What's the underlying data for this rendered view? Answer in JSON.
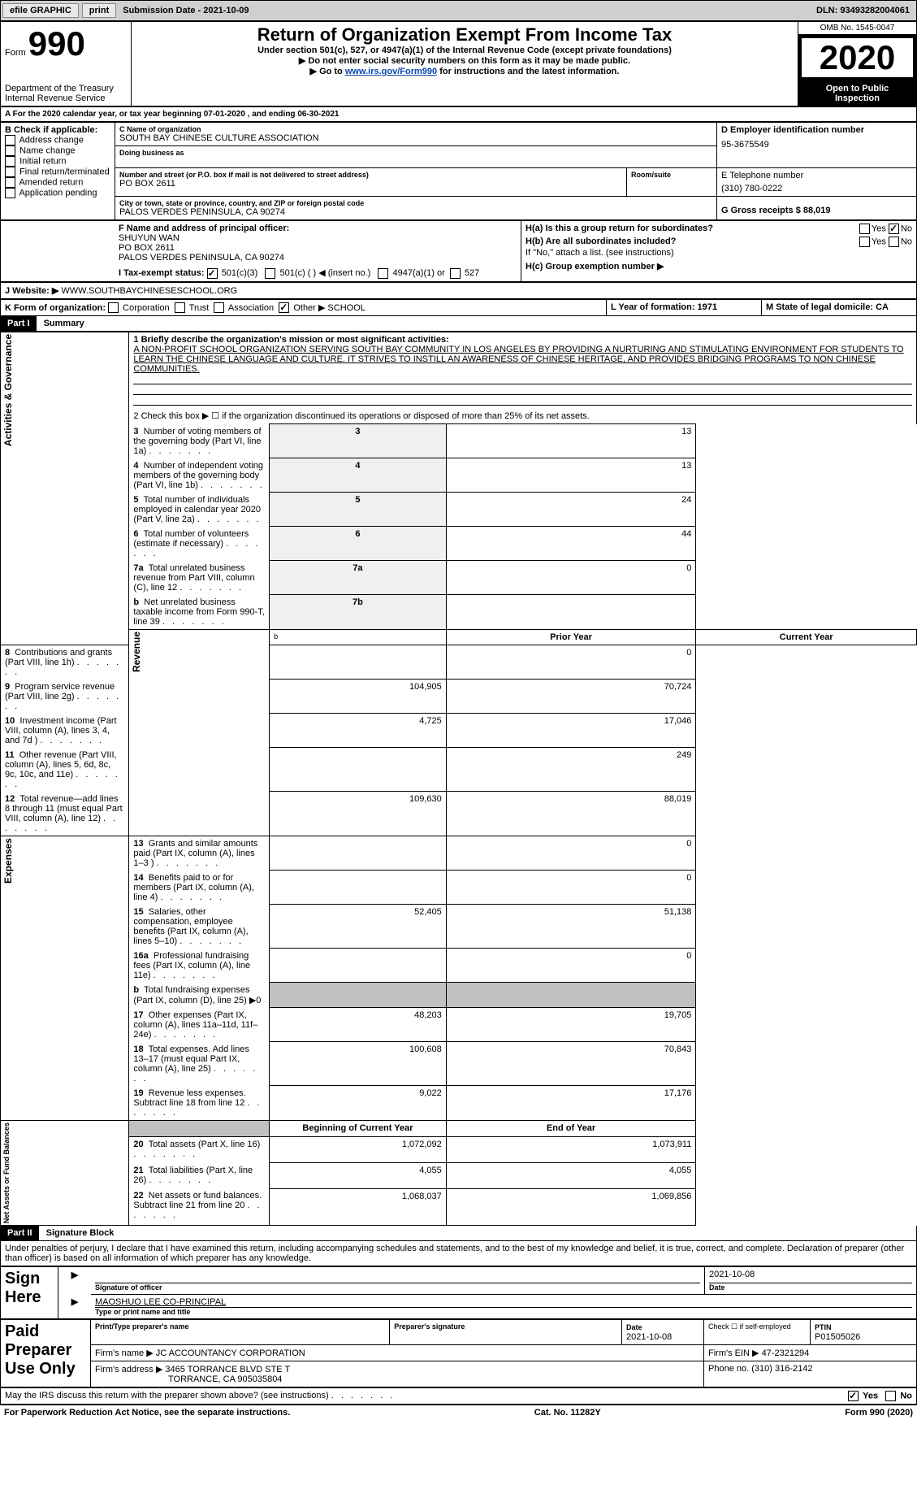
{
  "topbar": {
    "efile": "efile GRAPHIC",
    "print": "print",
    "sub_label": "Submission Date - 2021-10-09",
    "dln": "DLN: 93493282004061"
  },
  "header": {
    "form_label": "Form",
    "form_num": "990",
    "title": "Return of Organization Exempt From Income Tax",
    "sub1": "Under section 501(c), 527, or 4947(a)(1) of the Internal Revenue Code (except private foundations)",
    "sub2": "▶ Do not enter social security numbers on this form as it may be made public.",
    "sub3_pre": "▶ Go to ",
    "sub3_link": "www.irs.gov/Form990",
    "sub3_post": " for instructions and the latest information.",
    "dept": "Department of the Treasury\nInternal Revenue Service",
    "omb": "OMB No. 1545-0047",
    "year": "2020",
    "open": "Open to Public Inspection"
  },
  "period": {
    "a": "A For the 2020 calendar year, or tax year beginning 07-01-2020   , and ending 06-30-2021"
  },
  "boxB": {
    "label": "B Check if applicable:",
    "items": [
      "Address change",
      "Name change",
      "Initial return",
      "Final return/terminated",
      "Amended return",
      "Application pending"
    ]
  },
  "boxC": {
    "name_label": "C Name of organization",
    "name": "SOUTH BAY CHINESE CULTURE ASSOCIATION",
    "dba_label": "Doing business as",
    "addr_label": "Number and street (or P.O. box if mail is not delivered to street address)",
    "room_label": "Room/suite",
    "addr": "PO BOX 2611",
    "city_label": "City or town, state or province, country, and ZIP or foreign postal code",
    "city": "PALOS VERDES PENINSULA, CA  90274"
  },
  "boxD": {
    "label": "D Employer identification number",
    "val": "95-3675549"
  },
  "boxE": {
    "label": "E Telephone number",
    "val": "(310) 780-0222"
  },
  "boxG": {
    "label": "G Gross receipts $ 88,019"
  },
  "boxF": {
    "label": "F Name and address of principal officer:",
    "name": "SHUYUN WAN",
    "addr1": "PO BOX 2611",
    "addr2": "PALOS VERDES PENINSULA, CA  90274"
  },
  "boxH": {
    "a_label": "H(a)  Is this a group return for subordinates?",
    "b_label": "H(b)  Are all subordinates included?",
    "note": "If \"No,\" attach a list. (see instructions)",
    "c_label": "H(c)  Group exemption number ▶",
    "yes": "Yes",
    "no": "No"
  },
  "boxI": {
    "label": "I     Tax-exempt status:",
    "o1": "501(c)(3)",
    "o2": "501(c) (  ) ◀ (insert no.)",
    "o3": "4947(a)(1) or",
    "o4": "527"
  },
  "boxJ": {
    "label": "J    Website: ▶",
    "val": "WWW.SOUTHBAYCHINESESCHOOL.ORG"
  },
  "boxK": {
    "label": "K Form of organization:",
    "o1": "Corporation",
    "o2": "Trust",
    "o3": "Association",
    "o4": "Other ▶",
    "other": "SCHOOL"
  },
  "boxL": {
    "label": "L Year of formation: 1971"
  },
  "boxM": {
    "label": "M State of legal domicile: CA"
  },
  "part1": {
    "hdr": "Part I",
    "title": "Summary",
    "l1_label": "1  Briefly describe the organization's mission or most significant activities:",
    "l1_val": "A NON-PROFIT SCHOOL ORGANIZATION SERVING SOUTH BAY COMMUNITY IN LOS ANGELES BY PROVIDING A NURTURING AND STIMULATING ENVIRONMENT FOR STUDENTS TO LEARN THE CHINESE LANGUAGE AND CULTURE. IT STRIVES TO INSTILL AN AWARENESS OF CHINESE HERITAGE, AND PROVIDES BRIDGING PROGRAMS TO NON CHINESE COMMUNITIES.",
    "l2": "2  Check this box ▶ ☐ if the organization discontinued its operations or disposed of more than 25% of its net assets.",
    "rows_ag": [
      {
        "n": "3",
        "t": "Number of voting members of the governing body (Part VI, line 1a)",
        "rn": "3",
        "v": "13"
      },
      {
        "n": "4",
        "t": "Number of independent voting members of the governing body (Part VI, line 1b)",
        "rn": "4",
        "v": "13"
      },
      {
        "n": "5",
        "t": "Total number of individuals employed in calendar year 2020 (Part V, line 2a)",
        "rn": "5",
        "v": "24"
      },
      {
        "n": "6",
        "t": "Total number of volunteers (estimate if necessary)",
        "rn": "6",
        "v": "44"
      },
      {
        "n": "7a",
        "t": "Total unrelated business revenue from Part VIII, column (C), line 12",
        "rn": "7a",
        "v": "0"
      },
      {
        "n": "b",
        "t": "Net unrelated business taxable income from Form 990-T, line 39",
        "rn": "7b",
        "v": ""
      }
    ],
    "py_hdr": "Prior Year",
    "cy_hdr": "Current Year",
    "rev_rows": [
      {
        "n": "8",
        "t": "Contributions and grants (Part VIII, line 1h)",
        "py": "",
        "cy": "0"
      },
      {
        "n": "9",
        "t": "Program service revenue (Part VIII, line 2g)",
        "py": "104,905",
        "cy": "70,724"
      },
      {
        "n": "10",
        "t": "Investment income (Part VIII, column (A), lines 3, 4, and 7d )",
        "py": "4,725",
        "cy": "17,046"
      },
      {
        "n": "11",
        "t": "Other revenue (Part VIII, column (A), lines 5, 6d, 8c, 9c, 10c, and 11e)",
        "py": "",
        "cy": "249"
      },
      {
        "n": "12",
        "t": "Total revenue—add lines 8 through 11 (must equal Part VIII, column (A), line 12)",
        "py": "109,630",
        "cy": "88,019"
      }
    ],
    "exp_rows": [
      {
        "n": "13",
        "t": "Grants and similar amounts paid (Part IX, column (A), lines 1–3 )",
        "py": "",
        "cy": "0"
      },
      {
        "n": "14",
        "t": "Benefits paid to or for members (Part IX, column (A), line 4)",
        "py": "",
        "cy": "0"
      },
      {
        "n": "15",
        "t": "Salaries, other compensation, employee benefits (Part IX, column (A), lines 5–10)",
        "py": "52,405",
        "cy": "51,138"
      },
      {
        "n": "16a",
        "t": "Professional fundraising fees (Part IX, column (A), line 11e)",
        "py": "",
        "cy": "0"
      },
      {
        "n": "b",
        "t": "Total fundraising expenses (Part IX, column (D), line 25) ▶0",
        "py": "GREY",
        "cy": "GREY"
      },
      {
        "n": "17",
        "t": "Other expenses (Part IX, column (A), lines 11a–11d, 11f–24e)",
        "py": "48,203",
        "cy": "19,705"
      },
      {
        "n": "18",
        "t": "Total expenses. Add lines 13–17 (must equal Part IX, column (A), line 25)",
        "py": "100,608",
        "cy": "70,843"
      },
      {
        "n": "19",
        "t": "Revenue less expenses. Subtract line 18 from line 12",
        "py": "9,022",
        "cy": "17,176"
      }
    ],
    "bcy_hdr": "Beginning of Current Year",
    "ey_hdr": "End of Year",
    "na_rows": [
      {
        "n": "20",
        "t": "Total assets (Part X, line 16)",
        "py": "1,072,092",
        "cy": "1,073,911"
      },
      {
        "n": "21",
        "t": "Total liabilities (Part X, line 26)",
        "py": "4,055",
        "cy": "4,055"
      },
      {
        "n": "22",
        "t": "Net assets or fund balances. Subtract line 21 from line 20",
        "py": "1,068,037",
        "cy": "1,069,856"
      }
    ],
    "side_ag": "Activities & Governance",
    "side_rev": "Revenue",
    "side_exp": "Expenses",
    "side_na": "Net Assets or Fund Balances"
  },
  "part2": {
    "hdr": "Part II",
    "title": "Signature Block",
    "perjury": "Under penalties of perjury, I declare that I have examined this return, including accompanying schedules and statements, and to the best of my knowledge and belief, it is true, correct, and complete. Declaration of preparer (other than officer) is based on all information of which preparer has any knowledge.",
    "sign_here": "Sign Here",
    "sig_off": "Signature of officer",
    "date": "Date",
    "sig_date": "2021-10-08",
    "name_title": "MAOSHUO LEE  CO-PRINCIPAL",
    "name_title_label": "Type or print name and title",
    "paid_prep": "Paid Preparer Use Only",
    "prep_name_label": "Print/Type preparer's name",
    "prep_sig_label": "Preparer's signature",
    "prep_date_label": "Date",
    "prep_date": "2021-10-08",
    "check_se": "Check ☐ if self-employed",
    "ptin_label": "PTIN",
    "ptin": "P01505026",
    "firm_name_label": "Firm's name    ▶",
    "firm_name": "JC ACCOUNTANCY CORPORATION",
    "firm_ein_label": "Firm's EIN ▶",
    "firm_ein": "47-2321294",
    "firm_addr_label": "Firm's address ▶",
    "firm_addr1": "3465 TORRANCE BLVD STE T",
    "firm_addr2": "TORRANCE, CA  905035804",
    "firm_phone_label": "Phone no.",
    "firm_phone": "(310) 316-2142",
    "discuss": "May the IRS discuss this return with the preparer shown above? (see instructions)",
    "yes": "Yes",
    "no": "No"
  },
  "footer": {
    "left": "For Paperwork Reduction Act Notice, see the separate instructions.",
    "mid": "Cat. No. 11282Y",
    "right": "Form 990 (2020)"
  }
}
